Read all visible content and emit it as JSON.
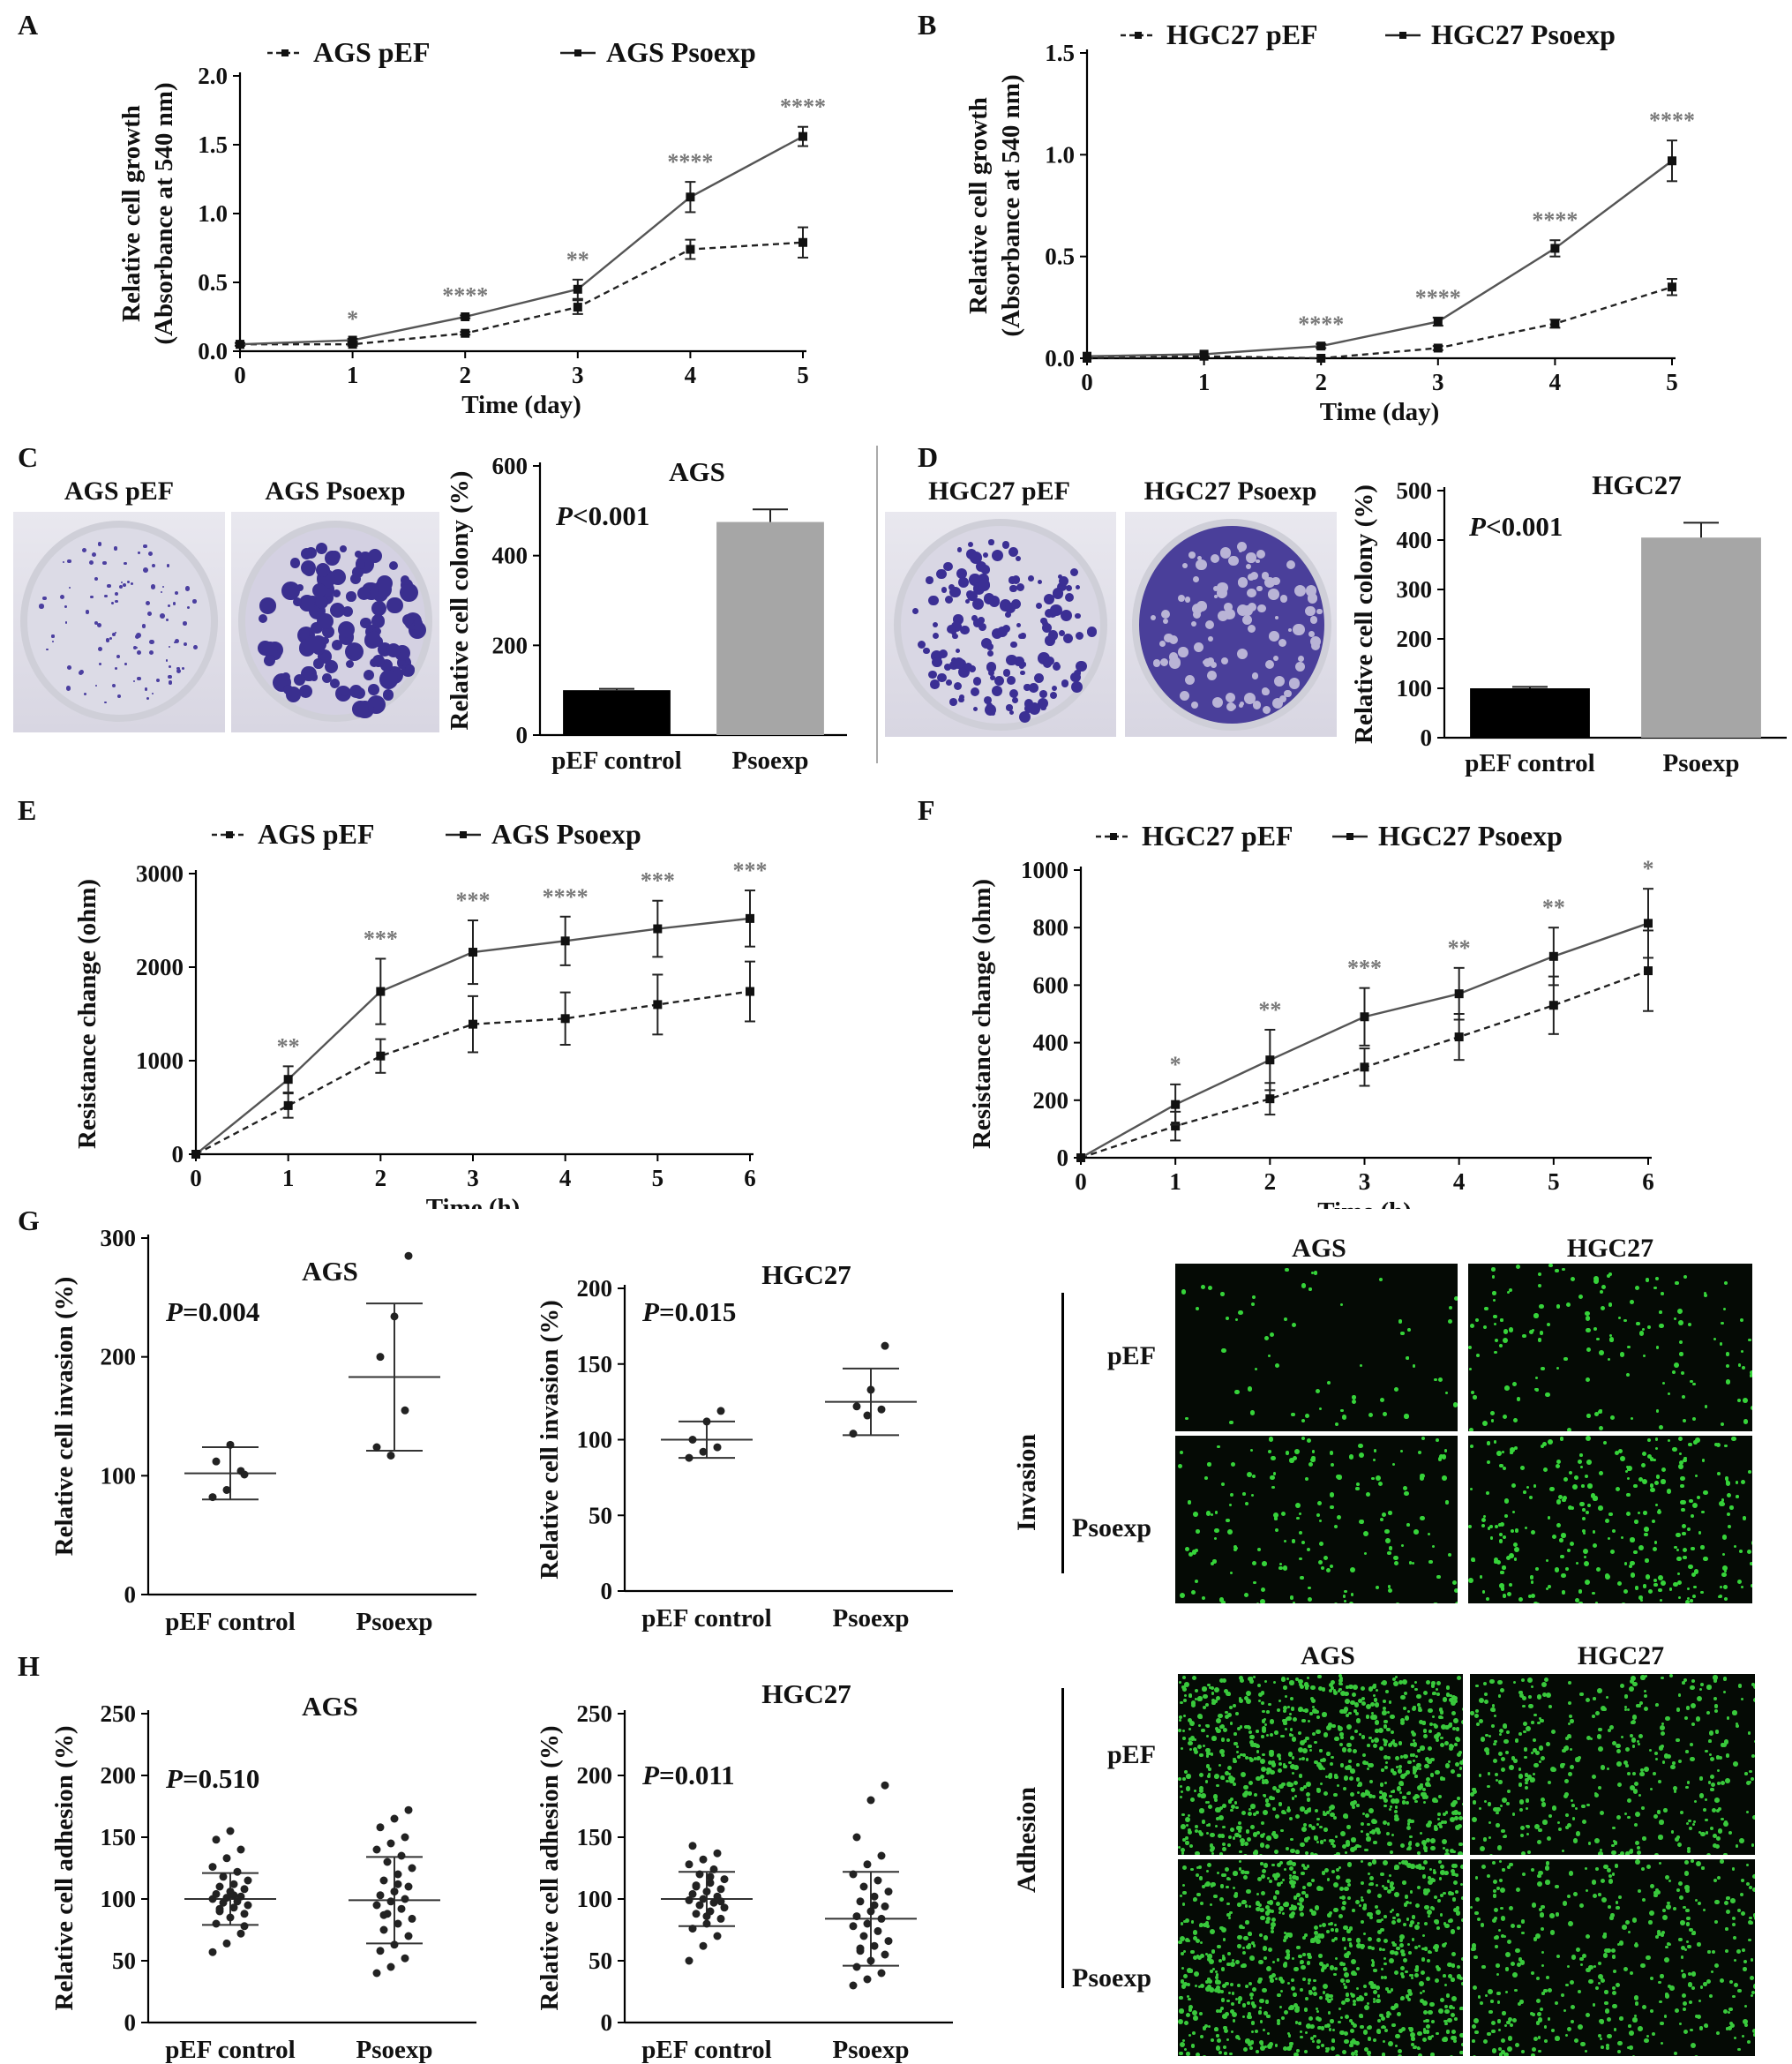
{
  "panels": {
    "A": {
      "label": "A",
      "chart": {
        "type": "line",
        "ylabel1": "Relative cell growth",
        "ylabel2": "(Absorbance at 540 nm)",
        "xlabel": "Time (day)",
        "x": [
          0,
          1,
          2,
          3,
          4,
          5
        ],
        "ylim": [
          0,
          2.0
        ],
        "yticks": [
          "0.0",
          "0.5",
          "1.0",
          "1.5",
          "2.0"
        ],
        "series": [
          {
            "name": "AGS pEF",
            "style": "dashed",
            "values": [
              0.05,
              0.05,
              0.13,
              0.32,
              0.74,
              0.79
            ],
            "err": [
              0.01,
              0.01,
              0.01,
              0.05,
              0.07,
              0.11
            ]
          },
          {
            "name": "AGS Psoexp",
            "style": "solid",
            "values": [
              0.05,
              0.08,
              0.25,
              0.45,
              1.12,
              1.56
            ],
            "err": [
              0.01,
              0.01,
              0.01,
              0.07,
              0.11,
              0.07
            ]
          }
        ],
        "stars": [
          "",
          "*",
          "****",
          "**",
          "****",
          "****"
        ]
      }
    },
    "B": {
      "label": "B",
      "chart": {
        "type": "line",
        "ylabel1": "Relative cell growth",
        "ylabel2": "(Absorbance at 540 nm)",
        "xlabel": "Time (day)",
        "x": [
          0,
          1,
          2,
          3,
          4,
          5
        ],
        "ylim": [
          0,
          1.5
        ],
        "yticks": [
          "0.0",
          "0.5",
          "1.0",
          "1.5"
        ],
        "series": [
          {
            "name": "HGC27 pEF",
            "style": "dashed",
            "values": [
              0.0,
              0.01,
              0.0,
              0.05,
              0.17,
              0.35
            ],
            "err": [
              0.0,
              0.0,
              0.0,
              0.01,
              0.02,
              0.04
            ]
          },
          {
            "name": "HGC27 Psoexp",
            "style": "solid",
            "values": [
              0.01,
              0.02,
              0.06,
              0.18,
              0.54,
              0.97
            ],
            "err": [
              0.0,
              0.0,
              0.01,
              0.02,
              0.04,
              0.1
            ]
          }
        ],
        "stars": [
          "",
          "",
          "****",
          "****",
          "****",
          "****"
        ]
      }
    },
    "C": {
      "label": "C",
      "photo_labels": [
        "AGS pEF",
        "AGS Psoexp"
      ],
      "chart": {
        "type": "bar",
        "title": "AGS",
        "ylabel": "Relative cell colony (%)",
        "ptext_p": "P",
        "ptext_rest": "<0.001",
        "categories": [
          "pEF control",
          "Psoexp"
        ],
        "values": [
          100,
          475
        ],
        "err": [
          3,
          28
        ],
        "colors": [
          "#000000",
          "#a6a6a6"
        ],
        "ylim": [
          0,
          600
        ],
        "yticks": [
          "0",
          "200",
          "400",
          "600"
        ]
      }
    },
    "D": {
      "label": "D",
      "photo_labels": [
        "HGC27 pEF",
        "HGC27 Psoexp"
      ],
      "chart": {
        "type": "bar",
        "title": "HGC27",
        "ylabel": "Relative cell colony (%)",
        "ptext_p": "P",
        "ptext_rest": "<0.001",
        "categories": [
          "pEF control",
          "Psoexp"
        ],
        "values": [
          100,
          405
        ],
        "err": [
          3,
          30
        ],
        "colors": [
          "#000000",
          "#a6a6a6"
        ],
        "ylim": [
          0,
          500
        ],
        "yticks": [
          "0",
          "100",
          "200",
          "300",
          "400",
          "500"
        ]
      }
    },
    "E": {
      "label": "E",
      "chart": {
        "type": "line",
        "ylabel": "Resistance change (ohm)",
        "xlabel": "Time (h)",
        "x": [
          0,
          1,
          2,
          3,
          4,
          5,
          6
        ],
        "ylim": [
          0,
          3000
        ],
        "yticks": [
          "0",
          "1000",
          "2000",
          "3000"
        ],
        "series": [
          {
            "name": "AGS pEF",
            "style": "dashed",
            "values": [
              0,
              520,
              1050,
              1390,
              1450,
              1600,
              1740
            ],
            "err": [
              0,
              130,
              180,
              300,
              280,
              320,
              320
            ]
          },
          {
            "name": "AGS Psoexp",
            "style": "solid",
            "values": [
              0,
              800,
              1740,
              2160,
              2280,
              2410,
              2520
            ],
            "err": [
              0,
              140,
              350,
              340,
              260,
              300,
              300
            ]
          }
        ],
        "stars": [
          "",
          "**",
          "***",
          "***",
          "****",
          "***",
          "***"
        ]
      }
    },
    "F": {
      "label": "F",
      "chart": {
        "type": "line",
        "ylabel": "Resistance change (ohm)",
        "xlabel": "Time (h)",
        "x": [
          0,
          1,
          2,
          3,
          4,
          5,
          6
        ],
        "ylim": [
          0,
          1000
        ],
        "yticks": [
          "0",
          "200",
          "400",
          "600",
          "800",
          "1000"
        ],
        "series": [
          {
            "name": "HGC27 pEF",
            "style": "dashed",
            "values": [
              0,
              110,
              205,
              315,
              420,
              530,
              650
            ],
            "err": [
              0,
              50,
              55,
              65,
              80,
              100,
              140
            ]
          },
          {
            "name": "HGC27 Psoexp",
            "style": "solid",
            "values": [
              0,
              185,
              340,
              490,
              570,
              700,
              815
            ],
            "err": [
              0,
              70,
              105,
              100,
              90,
              100,
              120
            ]
          }
        ],
        "stars": [
          "",
          "*",
          "**",
          "***",
          "**",
          "**",
          "*"
        ]
      }
    },
    "G": {
      "label": "G",
      "charts": [
        {
          "type": "scatter",
          "title": "AGS",
          "ylabel": "Relative cell invasion (%)",
          "ptext_p": "P",
          "ptext_rest": "=0.004",
          "categories": [
            "pEF control",
            "Psoexp"
          ],
          "ylim": [
            0,
            300
          ],
          "yticks": [
            "0",
            "100",
            "200",
            "300"
          ],
          "groups": [
            {
              "mean": 102,
              "sd": 22,
              "points": [
                82,
                88,
                104,
                112,
                126,
                101
              ]
            },
            {
              "mean": 183,
              "sd": 62,
              "points": [
                124,
                117,
                155,
                200,
                234,
                285
              ]
            }
          ]
        },
        {
          "type": "scatter",
          "title": "HGC27",
          "ylabel": "Relative cell invasion (%)",
          "ptext_p": "P",
          "ptext_rest": "=0.015",
          "categories": [
            "pEF control",
            "Psoexp"
          ],
          "ylim": [
            0,
            200
          ],
          "yticks": [
            "0",
            "50",
            "100",
            "150",
            "200"
          ],
          "groups": [
            {
              "mean": 100,
              "sd": 12,
              "points": [
                88,
                92,
                95,
                100,
                112,
                119
              ]
            },
            {
              "mean": 125,
              "sd": 22,
              "points": [
                104,
                116,
                120,
                122,
                133,
                162
              ]
            }
          ]
        }
      ],
      "micro": {
        "side_label": "Invasion",
        "col_labels": [
          "AGS",
          "HGC27"
        ],
        "row_labels": [
          "pEF",
          "Psoexp"
        ]
      }
    },
    "H": {
      "label": "H",
      "charts": [
        {
          "type": "scatter",
          "title": "AGS",
          "ylabel": "Relative cell adhesion (%)",
          "ptext_p": "P",
          "ptext_rest": "=0.510",
          "categories": [
            "pEF control",
            "Psoexp"
          ],
          "ylim": [
            0,
            250
          ],
          "yticks": [
            "0",
            "50",
            "100",
            "150",
            "200",
            "250"
          ],
          "groups": [
            {
              "mean": 100,
              "sd": 21,
              "points": [
                57,
                64,
                72,
                80,
                85,
                88,
                90,
                93,
                95,
                97,
                98,
                100,
                101,
                102,
                104,
                106,
                108,
                110,
                112,
                115,
                118,
                122,
                126,
                133,
                140,
                148,
                155,
                78,
                92,
                103
              ]
            },
            {
              "mean": 99,
              "sd": 35,
              "points": [
                40,
                45,
                52,
                58,
                63,
                70,
                75,
                80,
                84,
                88,
                92,
                95,
                98,
                100,
                103,
                106,
                110,
                115,
                120,
                125,
                130,
                135,
                140,
                145,
                150,
                158,
                165,
                172,
                87,
                112
              ]
            }
          ]
        },
        {
          "type": "scatter",
          "title": "HGC27",
          "ylabel": "Relative cell adhesion (%)",
          "ptext_p": "P",
          "ptext_rest": "=0.011",
          "categories": [
            "pEF control",
            "Psoexp"
          ],
          "ylim": [
            0,
            250
          ],
          "yticks": [
            "0",
            "50",
            "100",
            "150",
            "200",
            "250"
          ],
          "groups": [
            {
              "mean": 100,
              "sd": 22,
              "points": [
                50,
                62,
                70,
                76,
                80,
                84,
                88,
                90,
                93,
                95,
                97,
                99,
                100,
                102,
                104,
                106,
                108,
                110,
                113,
                116,
                120,
                124,
                128,
                132,
                137,
                143,
                86,
                98,
                111,
                118
              ]
            },
            {
              "mean": 84,
              "sd": 38,
              "points": [
                30,
                35,
                40,
                45,
                50,
                55,
                58,
                62,
                66,
                70,
                74,
                78,
                80,
                84,
                86,
                90,
                94,
                98,
                102,
                106,
                110,
                115,
                120,
                128,
                135,
                150,
                180,
                192,
                60,
                95
              ]
            }
          ]
        }
      ],
      "micro": {
        "side_label": "Adhesion",
        "col_labels": [
          "AGS",
          "HGC27"
        ],
        "row_labels": [
          "pEF",
          "Psoexp"
        ]
      }
    }
  }
}
